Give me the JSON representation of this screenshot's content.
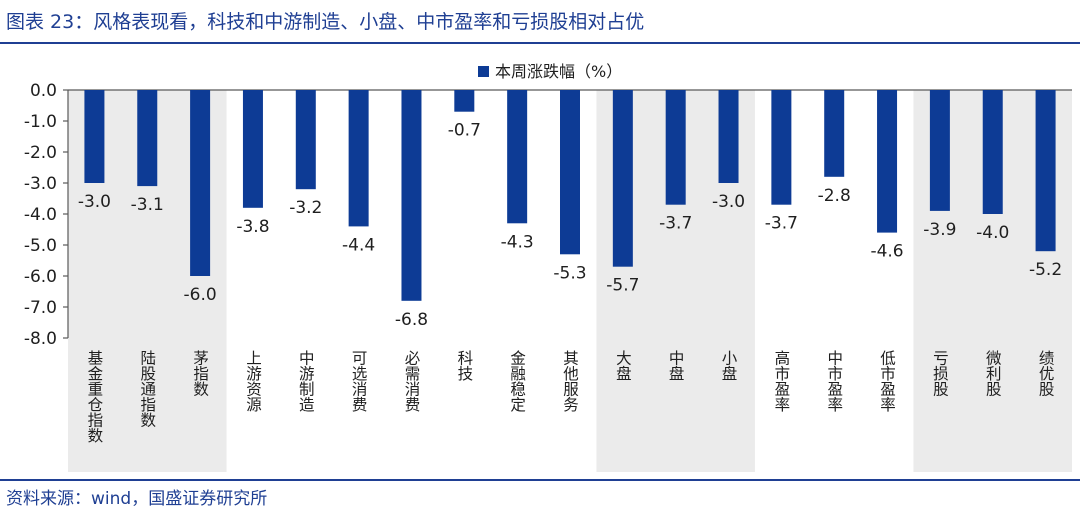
{
  "title": "图表 23：风格表现看，科技和中游制造、小盘、中市盈率和亏损股相对占优",
  "source": "资料来源：wind，国盛证券研究所",
  "colors": {
    "bar": "#0d3b95",
    "shade": "#ebebeb",
    "axis": "#595959",
    "accent": "#1f3f93"
  },
  "chart_data": {
    "type": "bar",
    "title": "",
    "legend": {
      "label": "本周涨跌幅（%）",
      "position": "top-center"
    },
    "xlabel": "",
    "ylabel": "",
    "ylim": [
      -8,
      0
    ],
    "y_ticks": [
      "0.0",
      "-1.0",
      "-2.0",
      "-3.0",
      "-4.0",
      "-5.0",
      "-6.0",
      "-7.0",
      "-8.0"
    ],
    "categories": [
      "基金重仓指数",
      "陆股通指数",
      "茅指数",
      "上游资源",
      "中游制造",
      "可选消费",
      "必需消费",
      "科技",
      "金融稳定",
      "其他服务",
      "大盘",
      "中盘",
      "小盘",
      "高市盈率",
      "中市盈率",
      "低市盈率",
      "亏损股",
      "微利股",
      "绩优股"
    ],
    "values": [
      -3.0,
      -3.1,
      -6.0,
      -3.8,
      -3.2,
      -4.4,
      -6.8,
      -0.7,
      -4.3,
      -5.3,
      -5.7,
      -3.7,
      -3.0,
      -3.7,
      -2.8,
      -4.6,
      -3.9,
      -4.0,
      -5.2
    ],
    "labels": [
      "-3.0",
      "-3.1",
      "-6.0",
      "-3.8",
      "-3.2",
      "-4.4",
      "-6.8",
      "-0.7",
      "-4.3",
      "-5.3",
      "-5.7",
      "-3.7",
      "-3.0",
      "-3.7",
      "-2.8",
      "-4.6",
      "-3.9",
      "-4.0",
      "-5.2"
    ],
    "shaded_groups": [
      [
        0,
        2
      ],
      [
        10,
        12
      ],
      [
        16,
        18
      ]
    ]
  }
}
